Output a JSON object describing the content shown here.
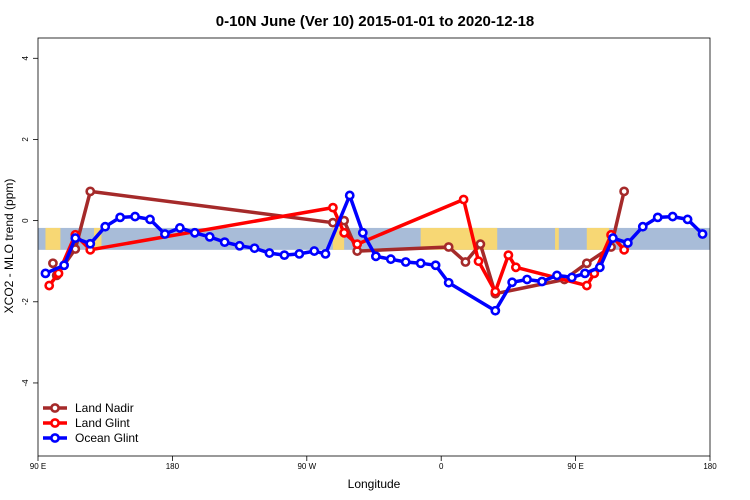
{
  "chart_data": {
    "type": "line",
    "title": "0-10N June (Ver 10)   2015-01-01 to 2020-12-18",
    "xlabel": "Longitude",
    "ylabel": "XCO2 - MLO trend (ppm)",
    "xlim": [
      0,
      360
    ],
    "ylim": [
      -5.8,
      4.5
    ],
    "x_ticks": [
      {
        "x": 0,
        "label": "90 E"
      },
      {
        "x": 72,
        "label": "180"
      },
      {
        "x": 144,
        "label": "90 W"
      },
      {
        "x": 216,
        "label": "0"
      },
      {
        "x": 288,
        "label": "90 E"
      },
      {
        "x": 360,
        "label": "180"
      }
    ],
    "y_ticks": [
      {
        "y": 4,
        "label": "4"
      },
      {
        "y": 2,
        "label": "2"
      },
      {
        "y": 0,
        "label": "0"
      },
      {
        "y": -2,
        "label": "-2"
      },
      {
        "y": -4,
        "label": "-4"
      }
    ],
    "grid": false,
    "legend_position": "bottom-left",
    "band": {
      "y_min": -0.72,
      "y_max": -0.18,
      "ocean_color": "#a8bcd8",
      "land_color": "#f7d774"
    },
    "land_regions": [
      [
        4,
        12
      ],
      [
        30,
        34
      ],
      [
        158,
        164
      ],
      [
        205,
        246
      ],
      [
        277,
        279
      ],
      [
        294,
        306
      ]
    ],
    "series": [
      {
        "name": "Land Nadir",
        "color": "#a52a2a",
        "points": [
          [
            8,
            -1.05
          ],
          [
            10,
            -1.35
          ],
          [
            20,
            -0.7
          ],
          [
            28,
            0.72
          ],
          [
            158,
            -0.05
          ],
          [
            164,
            0.0
          ],
          [
            171,
            -0.75
          ],
          [
            220,
            -0.65
          ],
          [
            229,
            -1.02
          ],
          [
            237,
            -0.58
          ],
          [
            245,
            -1.8
          ],
          [
            282,
            -1.45
          ],
          [
            294,
            -1.05
          ],
          [
            307,
            -0.65
          ],
          [
            314,
            0.72
          ]
        ]
      },
      {
        "name": "Land Glint",
        "color": "#ff0000",
        "points": [
          [
            6,
            -1.6
          ],
          [
            11,
            -1.3
          ],
          [
            20,
            -0.35
          ],
          [
            28,
            -0.72
          ],
          [
            158,
            0.32
          ],
          [
            164,
            -0.3
          ],
          [
            171,
            -0.58
          ],
          [
            228,
            0.52
          ],
          [
            236,
            -1.0
          ],
          [
            245,
            -1.75
          ],
          [
            252,
            -0.85
          ],
          [
            256,
            -1.15
          ],
          [
            294,
            -1.6
          ],
          [
            298,
            -1.3
          ],
          [
            307,
            -0.35
          ],
          [
            314,
            -0.72
          ]
        ]
      },
      {
        "name": "Ocean Glint",
        "color": "#0000ff",
        "points": [
          [
            4,
            -1.3
          ],
          [
            14,
            -1.1
          ],
          [
            20,
            -0.43
          ],
          [
            28,
            -0.57
          ],
          [
            36,
            -0.15
          ],
          [
            44,
            0.08
          ],
          [
            52,
            0.1
          ],
          [
            60,
            0.03
          ],
          [
            68,
            -0.33
          ],
          [
            76,
            -0.18
          ],
          [
            84,
            -0.3
          ],
          [
            92,
            -0.4
          ],
          [
            100,
            -0.53
          ],
          [
            108,
            -0.62
          ],
          [
            116,
            -0.68
          ],
          [
            124,
            -0.8
          ],
          [
            132,
            -0.85
          ],
          [
            140,
            -0.82
          ],
          [
            148,
            -0.75
          ],
          [
            154,
            -0.82
          ],
          [
            167,
            0.62
          ],
          [
            174,
            -0.3
          ],
          [
            181,
            -0.88
          ],
          [
            189,
            -0.95
          ],
          [
            197,
            -1.02
          ],
          [
            205,
            -1.05
          ],
          [
            213,
            -1.1
          ],
          [
            220,
            -1.53
          ],
          [
            245,
            -2.22
          ],
          [
            254,
            -1.52
          ],
          [
            262,
            -1.45
          ],
          [
            270,
            -1.5
          ],
          [
            278,
            -1.35
          ],
          [
            286,
            -1.4
          ],
          [
            293,
            -1.3
          ],
          [
            301,
            -1.15
          ],
          [
            308,
            -0.43
          ],
          [
            316,
            -0.55
          ],
          [
            324,
            -0.15
          ],
          [
            332,
            0.08
          ],
          [
            340,
            0.1
          ],
          [
            348,
            0.03
          ],
          [
            356,
            -0.33
          ]
        ]
      }
    ]
  }
}
